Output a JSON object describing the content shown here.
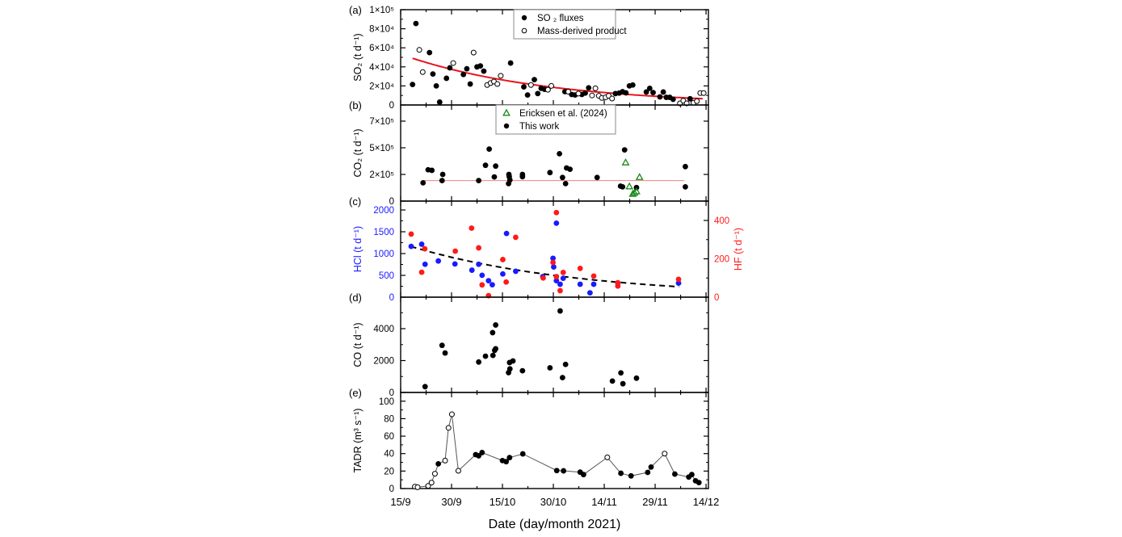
{
  "chart_data": {
    "type": "scatter",
    "x_axis": {
      "label": "Date (day/month 2021)",
      "unit": "days since 15/9/2021",
      "xlim": [
        0,
        90.7
      ],
      "tick_values": [
        0,
        15,
        30,
        45,
        60,
        75,
        90
      ],
      "tick_labels": [
        "15/9",
        "30/9",
        "15/10",
        "30/10",
        "14/11",
        "29/11",
        "14/12"
      ]
    },
    "panels": [
      {
        "id": "a",
        "panel_label": "(a)",
        "ylabel": "SO₂ (t d⁻¹)",
        "ylim": [
          0,
          100000
        ],
        "yticks": [
          0,
          20000,
          40000,
          60000,
          80000,
          100000
        ],
        "ytick_labels": [
          "0",
          "2×10⁴",
          "4×10⁴",
          "6×10⁴",
          "8×10⁴",
          "1×10⁵"
        ],
        "legend": [
          {
            "label": "SO ₂ fluxes",
            "marker": "filled-circle",
            "color": "#000000"
          },
          {
            "label": "Mass-derived product",
            "marker": "open-circle",
            "color": "#000000"
          }
        ],
        "series": [
          {
            "name": "SO2 fluxes",
            "marker": "filled-circle",
            "color": "#000000",
            "x": [
              3.5,
              4.5,
              8.5,
              9.5,
              10.5,
              11.5,
              13.5,
              14.5,
              18.5,
              19.5,
              20.5,
              22.5,
              23.5,
              24.5,
              32.4,
              36.3,
              37.4,
              39.4,
              40.4,
              41.4,
              42.4,
              48.4,
              50.4,
              51.4,
              53.4,
              54.4,
              55.4,
              63.3,
              64.4,
              65.4,
              66.4,
              67.4,
              68.4,
              72.4,
              73.4,
              74.4,
              76.4,
              77.4,
              78.3,
              79.3,
              80.3,
              85.3
            ],
            "y": [
              21500,
              85500,
              55000,
              32500,
              20000,
              3000,
              28000,
              39000,
              32000,
              38000,
              22000,
              40000,
              41000,
              35500,
              44000,
              19000,
              10500,
              26600,
              12000,
              17500,
              16400,
              14000,
              11000,
              10500,
              11000,
              12500,
              18000,
              12000,
              12500,
              14000,
              12700,
              20000,
              21000,
              13600,
              17500,
              13000,
              8500,
              13600,
              8000,
              8000,
              6000,
              6500
            ]
          },
          {
            "name": "Mass-derived product",
            "marker": "open-circle",
            "color": "#000000",
            "x": [
              5.5,
              6.5,
              15.5,
              21.5,
              25.5,
              26.5,
              27.5,
              28.5,
              29.5,
              38.4,
              43.4,
              44.4,
              49.4,
              52.4,
              56.4,
              57.4,
              58.4,
              59.3,
              60.4,
              61.3,
              62.3,
              82.3,
              83.3,
              84.3,
              86.3,
              87.3,
              88.3,
              89.3
            ],
            "y": [
              57800,
              34500,
              44000,
              55000,
              21000,
              23000,
              24600,
              22000,
              30600,
              21000,
              16000,
              20000,
              14000,
              12000,
              10000,
              17500,
              9600,
              7400,
              8000,
              9600,
              6800,
              1700,
              4500,
              1700,
              2300,
              4000,
              12500,
              12500
            ]
          }
        ],
        "fits": [
          {
            "name": "SO2 exponential fit",
            "type": "exponential",
            "a": 53200,
            "k": 0.02345,
            "x_range": [
              3.5,
              89
            ],
            "color": "#e8141b",
            "style": "solid"
          }
        ]
      },
      {
        "id": "b",
        "panel_label": "(b)",
        "ylabel": "CO₂ (t d⁻¹)",
        "ylim": [
          0,
          850000
        ],
        "yticks": [
          0,
          200000,
          500000,
          700000
        ],
        "ytick_labels": [
          "0",
          "2×10⁵",
          "5×10⁵",
          "7×10⁵"
        ],
        "legend": [
          {
            "label": "Ericksen et al. (2024)",
            "marker": "open-triangle",
            "color": "#1a8a1a"
          },
          {
            "label": "This work",
            "marker": "filled-circle",
            "color": "#000000"
          }
        ],
        "series": [
          {
            "name": "This work",
            "marker": "filled-circle",
            "color": "#000000",
            "x": [
              6.6,
              8.1,
              9.2,
              12.2,
              12.4,
              23.0,
              25.0,
              26.1,
              27.6,
              28.0,
              31.8,
              31.9,
              32.0,
              32.2,
              35.9,
              35.9,
              44.0,
              46.8,
              47.7,
              48.6,
              48.9,
              49.9,
              57.9,
              64.8,
              65.4,
              66.0,
              69.5,
              83.9,
              83.9
            ],
            "y": [
              137000,
              252000,
              246000,
              154000,
              200000,
              154000,
              303000,
              485000,
              181000,
              294000,
              131000,
              200000,
              183000,
              158000,
              200000,
              183000,
              221000,
              433000,
              177000,
              131000,
              273000,
              258000,
              177000,
              112000,
              107000,
              476000,
              101000,
              288000,
              107000
            ]
          },
          {
            "name": "Ericksen et al. (2024)",
            "marker": "open-triangle",
            "color": "#1a8a1a",
            "x": [
              66.3,
              67.4,
              68.4,
              68.9,
              69.5,
              70.4
            ],
            "y": [
              333000,
              109000,
              53000,
              61000,
              72000,
              179000
            ]
          }
        ],
        "fits": [
          {
            "name": "CO2 mean",
            "type": "constant",
            "value": 154000,
            "x_range": [
              6.6,
              84
            ],
            "color": "#f08080",
            "style": "solid"
          }
        ]
      },
      {
        "id": "c",
        "panel_label": "(c)",
        "ylabel": "HCl (t d⁻¹)",
        "ylabel_color": "#1a1aff",
        "ylim": [
          0,
          2204
        ],
        "yticks": [
          0,
          500,
          1000,
          1500,
          2000
        ],
        "ytick_labels": [
          "0",
          "500",
          "1000",
          "1500",
          "2000"
        ],
        "right_axis": {
          "ylabel": "HF (t d⁻¹)",
          "color": "#ff1a1a",
          "ylim": [
            0,
            501
          ],
          "yticks": [
            0,
            200,
            400
          ],
          "ytick_labels": [
            "0",
            "200",
            "400"
          ]
        },
        "series": [
          {
            "name": "HCl",
            "marker": "filled-circle",
            "color": "#1a1aff",
            "axis": "left",
            "x": [
              3.1,
              6.2,
              7.2,
              11.1,
              16.0,
              21.0,
              23.0,
              24.0,
              25.9,
              27.0,
              30.1,
              31.2,
              33.9,
              41.9,
              44.9,
              45.1,
              45.9,
              45.9,
              47.0,
              47.9,
              52.9,
              55.8,
              56.9,
              64.0,
              81.9
            ],
            "y": [
              1164,
              1214,
              755,
              830,
              762,
              619,
              755,
              502,
              378,
              285,
              533,
              1461,
              594,
              471,
              892,
              693,
              1697,
              378,
              297,
              433,
              297,
              99,
              297,
              322,
              322
            ]
          },
          {
            "name": "HF",
            "marker": "filled-circle",
            "color": "#ff1a1a",
            "axis": "right",
            "x": [
              3.1,
              6.2,
              7.1,
              16.1,
              20.9,
              23.0,
              24.0,
              25.9,
              30.1,
              31.1,
              33.9,
              42.0,
              44.9,
              45.9,
              45.9,
              47.0,
              47.9,
              52.9,
              56.9,
              64.0,
              64.0,
              81.9
            ],
            "y": [
              329,
              130,
              252,
              240,
              360,
              257,
              64,
              8,
              196,
              79,
              312,
              100,
              181,
              441,
              107,
              34,
              129,
              150,
              110,
              75,
              58,
              93
            ]
          }
        ],
        "fits": [
          {
            "name": "HCl exponential fit",
            "type": "exponential",
            "a": 1236,
            "k": 0.02,
            "x_range": [
              3,
              82
            ],
            "color": "#000000",
            "style": "dashed"
          }
        ]
      },
      {
        "id": "d",
        "panel_label": "(d)",
        "ylabel": "CO (t d⁻¹)",
        "ylim": [
          0,
          5975
        ],
        "yticks": [
          0,
          2000,
          4000
        ],
        "ytick_labels": [
          "0",
          "2000",
          "4000"
        ],
        "series": [
          {
            "name": "CO",
            "marker": "filled-circle",
            "color": "#000000",
            "x": [
              7.2,
              12.2,
              13.1,
              23.0,
              25.0,
              27.1,
              27.2,
              27.7,
              28.0,
              28.0,
              31.8,
              32.1,
              32.2,
              33.1,
              35.9,
              44.0,
              47.0,
              47.7,
              48.6,
              62.4,
              64.9,
              65.5,
              69.5
            ],
            "y": [
              365,
              2954,
              2473,
              1909,
              2274,
              3751,
              2324,
              2639,
              2739,
              4232,
              1245,
              1876,
              1477,
              1975,
              1361,
              1543,
              5112,
              929,
              1759,
              714,
              1228,
              548,
              896
            ]
          }
        ]
      },
      {
        "id": "e",
        "panel_label": "(e)",
        "ylabel": "TADR (m³ s⁻¹)",
        "ylim": [
          0,
          110
        ],
        "yticks": [
          0,
          20,
          40,
          60,
          80,
          100
        ],
        "ytick_labels": [
          "0",
          "20",
          "40",
          "60",
          "80",
          "100"
        ],
        "series": [
          {
            "name": "TADR",
            "marker": "mixed",
            "color": "#000000",
            "connected": true,
            "x": [
              4.2,
              5.0,
              8.1,
              9.1,
              10.1,
              11.1,
              13.1,
              14.1,
              15.1,
              17.0,
              22.1,
              23.0,
              24.0,
              30.0,
              31.1,
              32.1,
              36.0,
              46.0,
              48.0,
              52.9,
              53.9,
              60.9,
              64.9,
              67.9,
              72.8,
              73.8,
              77.8,
              80.8,
              84.9,
              85.8,
              86.9,
              87.9
            ],
            "y": [
              2.2,
              1.5,
              3,
              6.8,
              17,
              28.3,
              32,
              69.5,
              85,
              20.3,
              38.8,
              37.5,
              41.2,
              32,
              30.8,
              35.4,
              39.7,
              20.6,
              20.3,
              18.8,
              16,
              35.7,
              17.5,
              14.5,
              18.5,
              24.6,
              40,
              16.6,
              13.2,
              16,
              8.9,
              6.8
            ],
            "open": [
              true,
              true,
              true,
              true,
              true,
              false,
              true,
              true,
              true,
              true,
              false,
              false,
              false,
              false,
              false,
              false,
              false,
              false,
              false,
              false,
              false,
              true,
              false,
              false,
              false,
              false,
              true,
              false,
              false,
              false,
              false,
              false
            ]
          }
        ]
      }
    ]
  }
}
